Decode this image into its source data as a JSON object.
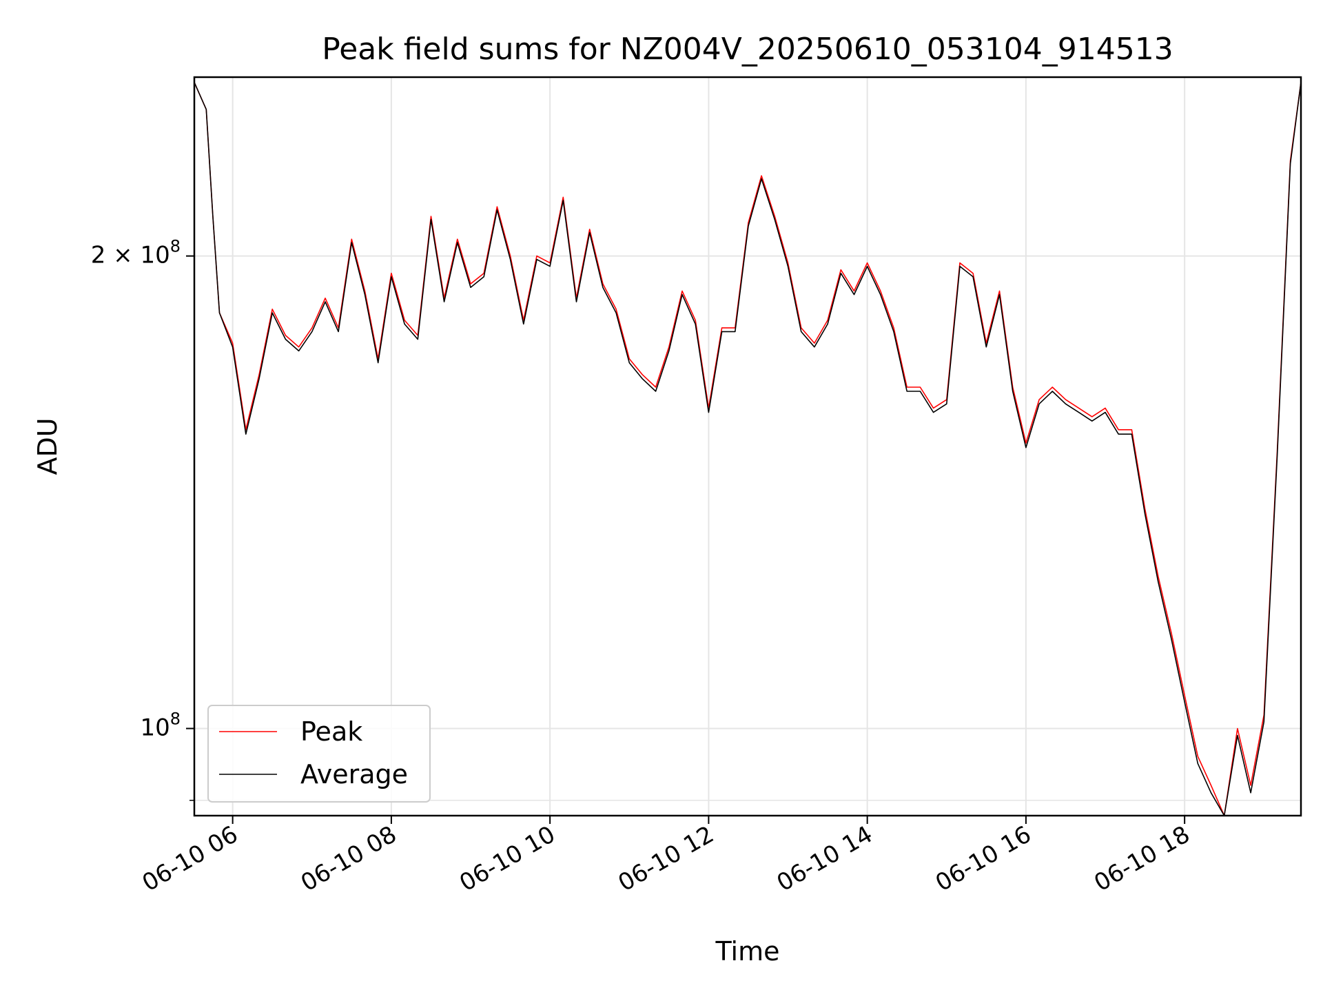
{
  "chart_data": {
    "type": "line",
    "title": "Peak field sums for NZ004V_20250610_053104_914513",
    "xlabel": "Time",
    "ylabel": "ADU",
    "y_scale": "log",
    "ylim": [
      88000000,
      260000000
    ],
    "xlim": [
      "06-10 05:31",
      "06-10 19:28"
    ],
    "grid": true,
    "legend_position": "lower-left",
    "x_ticks": [
      "06-10 06",
      "06-10 08",
      "06-10 10",
      "06-10 12",
      "06-10 14",
      "06-10 16",
      "06-10 18"
    ],
    "y_ticks": [
      {
        "value": 200000000,
        "mantissa": "2",
        "times": "×",
        "base": "10",
        "exponent": "8"
      },
      {
        "value": 100000000,
        "mantissa": "",
        "times": "",
        "base": "10",
        "exponent": "8"
      }
    ],
    "y_minor_ticks": [
      90000000
    ],
    "x": [
      "05:31",
      "05:40",
      "05:45",
      "05:50",
      "06:00",
      "06:10",
      "06:20",
      "06:30",
      "06:40",
      "06:50",
      "07:00",
      "07:10",
      "07:20",
      "07:30",
      "07:40",
      "07:50",
      "08:00",
      "08:10",
      "08:20",
      "08:30",
      "08:40",
      "08:50",
      "09:00",
      "09:10",
      "09:20",
      "09:30",
      "09:40",
      "09:50",
      "10:00",
      "10:10",
      "10:20",
      "10:30",
      "10:40",
      "10:50",
      "11:00",
      "11:10",
      "11:20",
      "11:30",
      "11:40",
      "11:50",
      "12:00",
      "12:10",
      "12:20",
      "12:30",
      "12:40",
      "12:50",
      "13:00",
      "13:10",
      "13:20",
      "13:30",
      "13:40",
      "13:50",
      "14:00",
      "14:10",
      "14:20",
      "14:30",
      "14:40",
      "14:50",
      "15:00",
      "15:10",
      "15:20",
      "15:30",
      "15:40",
      "15:50",
      "16:00",
      "16:10",
      "16:20",
      "16:30",
      "16:40",
      "16:50",
      "17:00",
      "17:10",
      "17:20",
      "17:30",
      "17:40",
      "17:50",
      "18:00",
      "18:10",
      "18:20",
      "18:30",
      "18:40",
      "18:50",
      "19:00",
      "19:10",
      "19:20",
      "19:28"
    ],
    "series": [
      {
        "name": "Peak",
        "color": "#ff0000",
        "values": [
          258000000,
          248000000,
          212000000,
          184000000,
          176000000,
          155000000,
          168000000,
          185000000,
          178000000,
          175000000,
          180000000,
          188000000,
          180000000,
          205000000,
          190000000,
          172000000,
          195000000,
          182000000,
          178000000,
          212000000,
          188000000,
          205000000,
          192000000,
          195000000,
          215000000,
          200000000,
          182000000,
          200000000,
          198000000,
          218000000,
          188000000,
          208000000,
          192000000,
          185000000,
          172000000,
          168000000,
          165000000,
          175000000,
          190000000,
          182000000,
          160000000,
          180000000,
          180000000,
          210000000,
          225000000,
          212000000,
          198000000,
          180000000,
          176000000,
          182000000,
          196000000,
          190000000,
          198000000,
          190000000,
          180000000,
          165000000,
          165000000,
          160000000,
          162000000,
          198000000,
          195000000,
          176000000,
          190000000,
          165000000,
          152000000,
          162000000,
          165000000,
          162000000,
          160000000,
          158000000,
          160000000,
          155000000,
          155000000,
          138000000,
          125000000,
          115000000,
          105000000,
          96000000,
          92000000,
          88000000,
          100000000,
          92000000,
          102000000,
          150000000,
          230000000,
          258000000
        ]
      },
      {
        "name": "Average",
        "color": "#000000",
        "values": [
          258000000,
          248000000,
          212000000,
          184000000,
          175000000,
          154000000,
          167000000,
          184000000,
          177000000,
          174000000,
          179000000,
          187000000,
          179000000,
          204000000,
          189000000,
          171000000,
          194000000,
          181000000,
          177000000,
          211000000,
          187000000,
          204000000,
          191000000,
          194000000,
          214000000,
          199000000,
          181000000,
          199000000,
          197000000,
          217000000,
          187000000,
          207000000,
          191000000,
          184000000,
          171000000,
          167000000,
          164000000,
          174000000,
          189000000,
          181000000,
          159000000,
          179000000,
          179000000,
          209000000,
          224000000,
          211000000,
          197000000,
          179000000,
          175000000,
          181000000,
          195000000,
          189000000,
          197000000,
          189000000,
          179000000,
          164000000,
          164000000,
          159000000,
          161000000,
          197000000,
          194000000,
          175000000,
          189000000,
          164000000,
          151000000,
          161000000,
          164000000,
          161000000,
          159000000,
          157000000,
          159000000,
          154000000,
          154000000,
          137000000,
          124000000,
          114000000,
          104000000,
          95000000,
          91000000,
          88000000,
          99000000,
          91000000,
          101000000,
          149000000,
          229000000,
          258000000
        ]
      }
    ]
  }
}
